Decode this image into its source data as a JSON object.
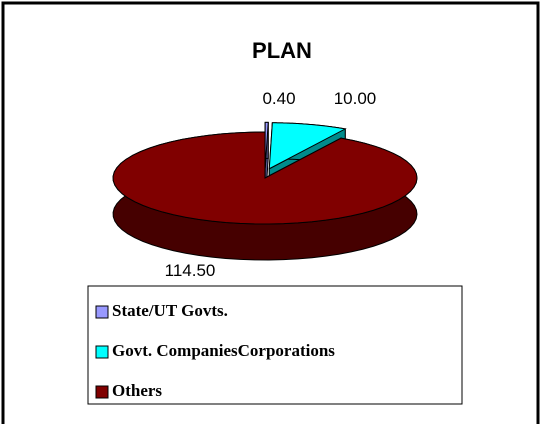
{
  "chart_data": {
    "type": "pie3d",
    "title": "PLAN",
    "categories": [
      "State/UT Govts.",
      "Govt. CompaniesCorporations",
      "Others"
    ],
    "values": [
      0.4,
      10,
      114.5
    ],
    "value_labels": [
      "0.40",
      "10.00",
      "114.50"
    ],
    "colors": [
      "#9999ff",
      "#00ffff",
      "#800000"
    ],
    "legend": "bottom"
  }
}
